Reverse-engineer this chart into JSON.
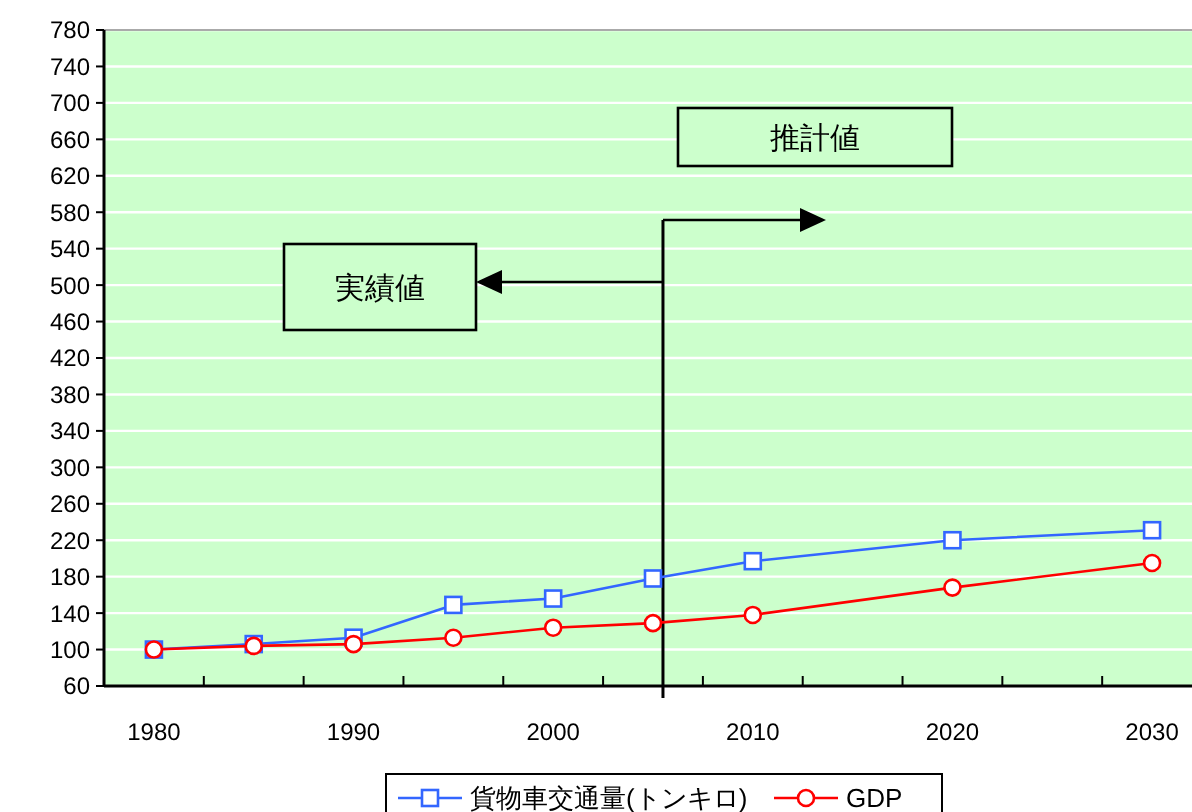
{
  "chart_data": {
    "type": "line",
    "x": [
      1980,
      1985,
      1990,
      1995,
      2000,
      2005,
      2010,
      2020,
      2030
    ],
    "series": [
      {
        "name": "貨物車交通量(トンキロ)",
        "color": "#3366ff",
        "marker": "square",
        "values": [
          100,
          106,
          113,
          149,
          156,
          178,
          197,
          220,
          231
        ]
      },
      {
        "name": "GDP",
        "color": "#ff0000",
        "marker": "circle",
        "values": [
          100,
          104,
          106,
          113,
          124,
          129,
          138,
          168,
          195
        ]
      }
    ],
    "xlim": [
      1977.5,
      2032
    ],
    "xticks": [
      1980,
      {
        "value": 1982.5,
        "label": null
      },
      1990,
      {
        "value": 1987.5,
        "label": null
      },
      {
        "value": 1992.5,
        "label": null
      },
      {
        "value": 1997.5,
        "label": null
      },
      2000,
      {
        "value": 2002.5,
        "label": null
      },
      {
        "value": 2007.5,
        "label": null
      },
      2010,
      {
        "value": 2012.5,
        "label": null
      },
      {
        "value": 2017.5,
        "label": null
      },
      2020,
      {
        "value": 2022.5,
        "label": null
      },
      {
        "value": 2027.5,
        "label": null
      },
      2030
    ],
    "ylim": [
      60,
      780
    ],
    "yticks": [
      60,
      100,
      140,
      180,
      220,
      260,
      300,
      340,
      380,
      420,
      460,
      500,
      540,
      580,
      620,
      660,
      700,
      740,
      780
    ],
    "grid": "y",
    "legend": "bottom",
    "ref_lines": [
      {
        "axis": "x",
        "value": 2005.5,
        "color": "#000000"
      }
    ],
    "annotations": [
      "実績値",
      "推計値"
    ]
  }
}
